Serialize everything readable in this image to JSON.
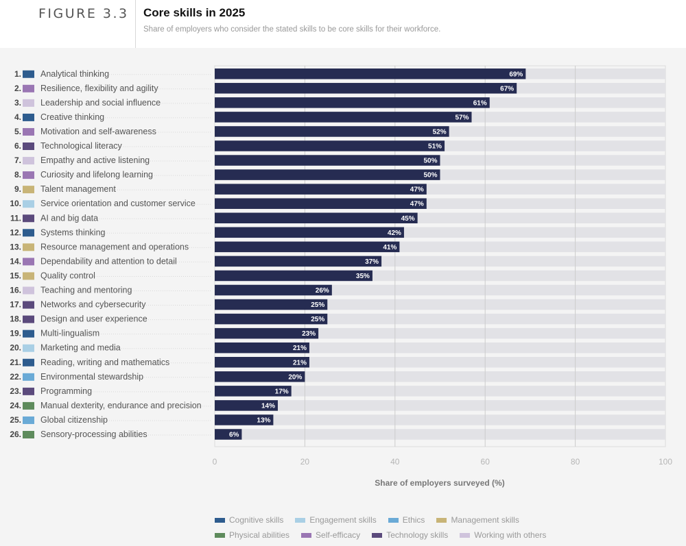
{
  "header": {
    "figure_label": "FIGURE 3.3",
    "title": "Core skills in 2025",
    "subtitle": "Share of employers who consider the stated skills to be core skills for their workforce."
  },
  "categories_colors": {
    "Cognitive skills": "#2e5c8e",
    "Engagement skills": "#a9cfe5",
    "Ethics": "#6aaad6",
    "Management skills": "#c8b477",
    "Physical abilities": "#5e8b5c",
    "Self-efficacy": "#9a76b3",
    "Technology skills": "#5b4a7c",
    "Working with others": "#cfc3dc"
  },
  "legend": [
    [
      {
        "label": "Cognitive skills",
        "color": "#2e5c8e"
      },
      {
        "label": "Engagement skills",
        "color": "#a9cfe5"
      },
      {
        "label": "Ethics",
        "color": "#6aaad6"
      },
      {
        "label": "Management skills",
        "color": "#c8b477"
      }
    ],
    [
      {
        "label": "Physical abilities",
        "color": "#5e8b5c"
      },
      {
        "label": "Self-efficacy",
        "color": "#9a76b3"
      },
      {
        "label": "Technology skills",
        "color": "#5b4a7c"
      },
      {
        "label": "Working with others",
        "color": "#cfc3dc"
      }
    ]
  ],
  "colors": {
    "bar": "#262c52",
    "track": "#e2e2e6",
    "gridline": "#cccccc"
  },
  "chart_data": {
    "type": "bar",
    "orientation": "horizontal",
    "title": "Core skills in 2025",
    "subtitle": "Share of employers who consider the stated skills to be core skills for their workforce.",
    "xlabel": "Share of employers surveyed (%)",
    "ylabel": "",
    "xlim": [
      0,
      100
    ],
    "xticks": [
      0,
      20,
      40,
      60,
      80,
      100
    ],
    "grid": true,
    "legend_position": "bottom",
    "categories": [
      "Analytical thinking",
      "Resilience, flexibility and agility",
      "Leadership and social influence",
      "Creative thinking",
      "Motivation and self-awareness",
      "Technological literacy",
      "Empathy and active listening",
      "Curiosity and lifelong learning",
      "Talent management",
      "Service orientation and customer service",
      "AI and big data",
      "Systems thinking",
      "Resource management and operations",
      "Dependability and attention to detail",
      "Quality control",
      "Teaching and mentoring",
      "Networks and cybersecurity",
      "Design and user experience",
      "Multi-lingualism",
      "Marketing and media",
      "Reading, writing and mathematics",
      "Environmental stewardship",
      "Programming",
      "Manual dexterity, endurance and precision",
      "Global citizenship",
      "Sensory-processing abilities"
    ],
    "ranks": [
      "1.",
      "2.",
      "3.",
      "4.",
      "5.",
      "6.",
      "7.",
      "8.",
      "9.",
      "10.",
      "11.",
      "12.",
      "13.",
      "14.",
      "15.",
      "16.",
      "17.",
      "18.",
      "19.",
      "20.",
      "21.",
      "22.",
      "23.",
      "24.",
      "25.",
      "26."
    ],
    "skill_category": [
      "Cognitive skills",
      "Self-efficacy",
      "Working with others",
      "Cognitive skills",
      "Self-efficacy",
      "Technology skills",
      "Working with others",
      "Self-efficacy",
      "Management skills",
      "Engagement skills",
      "Technology skills",
      "Cognitive skills",
      "Management skills",
      "Self-efficacy",
      "Management skills",
      "Working with others",
      "Technology skills",
      "Technology skills",
      "Cognitive skills",
      "Engagement skills",
      "Cognitive skills",
      "Ethics",
      "Technology skills",
      "Physical abilities",
      "Ethics",
      "Physical abilities"
    ],
    "values": [
      69,
      67,
      61,
      57,
      52,
      51,
      50,
      50,
      47,
      47,
      45,
      42,
      41,
      37,
      35,
      26,
      25,
      25,
      23,
      21,
      21,
      20,
      17,
      14,
      13,
      6
    ],
    "value_labels": [
      "69%",
      "67%",
      "61%",
      "57%",
      "52%",
      "51%",
      "50%",
      "50%",
      "47%",
      "47%",
      "45%",
      "42%",
      "41%",
      "37%",
      "35%",
      "26%",
      "25%",
      "25%",
      "23%",
      "21%",
      "21%",
      "20%",
      "17%",
      "14%",
      "13%",
      "6%"
    ]
  }
}
